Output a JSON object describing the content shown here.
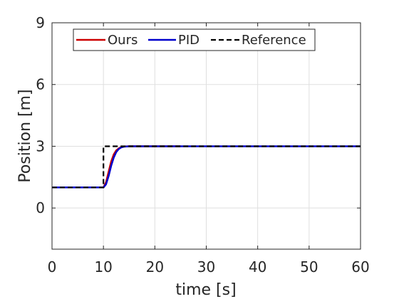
{
  "chart_data": {
    "type": "line",
    "title": "",
    "xlabel": "time [s]",
    "ylabel": "Position [m]",
    "xlim": [
      0,
      60
    ],
    "ylim": [
      -2,
      9
    ],
    "xticks": [
      0,
      10,
      20,
      30,
      40,
      50,
      60
    ],
    "xtick_labels": [
      "0",
      "10",
      "20",
      "30",
      "40",
      "50",
      "60"
    ],
    "yticks": [
      0,
      3,
      6,
      9
    ],
    "ytick_labels": [
      "0",
      "3",
      "6",
      "9"
    ],
    "grid": true,
    "legend_position": "top",
    "series": [
      {
        "name": "Ours",
        "color": "#cc0000",
        "style": "solid",
        "x": [
          0,
          10,
          10.5,
          11,
          11.5,
          12,
          12.5,
          13,
          13.5,
          14,
          15,
          25
        ],
        "y": [
          1,
          1,
          1.25,
          1.75,
          2.25,
          2.6,
          2.8,
          2.9,
          2.96,
          2.99,
          3,
          3
        ]
      },
      {
        "name": "PID",
        "color": "#0000cc",
        "style": "solid",
        "x": [
          0,
          10,
          10.5,
          11,
          11.5,
          12,
          12.5,
          13,
          13.5,
          14,
          15,
          60
        ],
        "y": [
          1,
          1,
          1.15,
          1.55,
          2.05,
          2.45,
          2.72,
          2.87,
          2.95,
          2.98,
          3,
          3
        ]
      },
      {
        "name": "Reference",
        "color": "#000000",
        "style": "dashed",
        "x": [
          0,
          10,
          10,
          60
        ],
        "y": [
          1,
          1,
          3,
          3
        ]
      }
    ]
  }
}
